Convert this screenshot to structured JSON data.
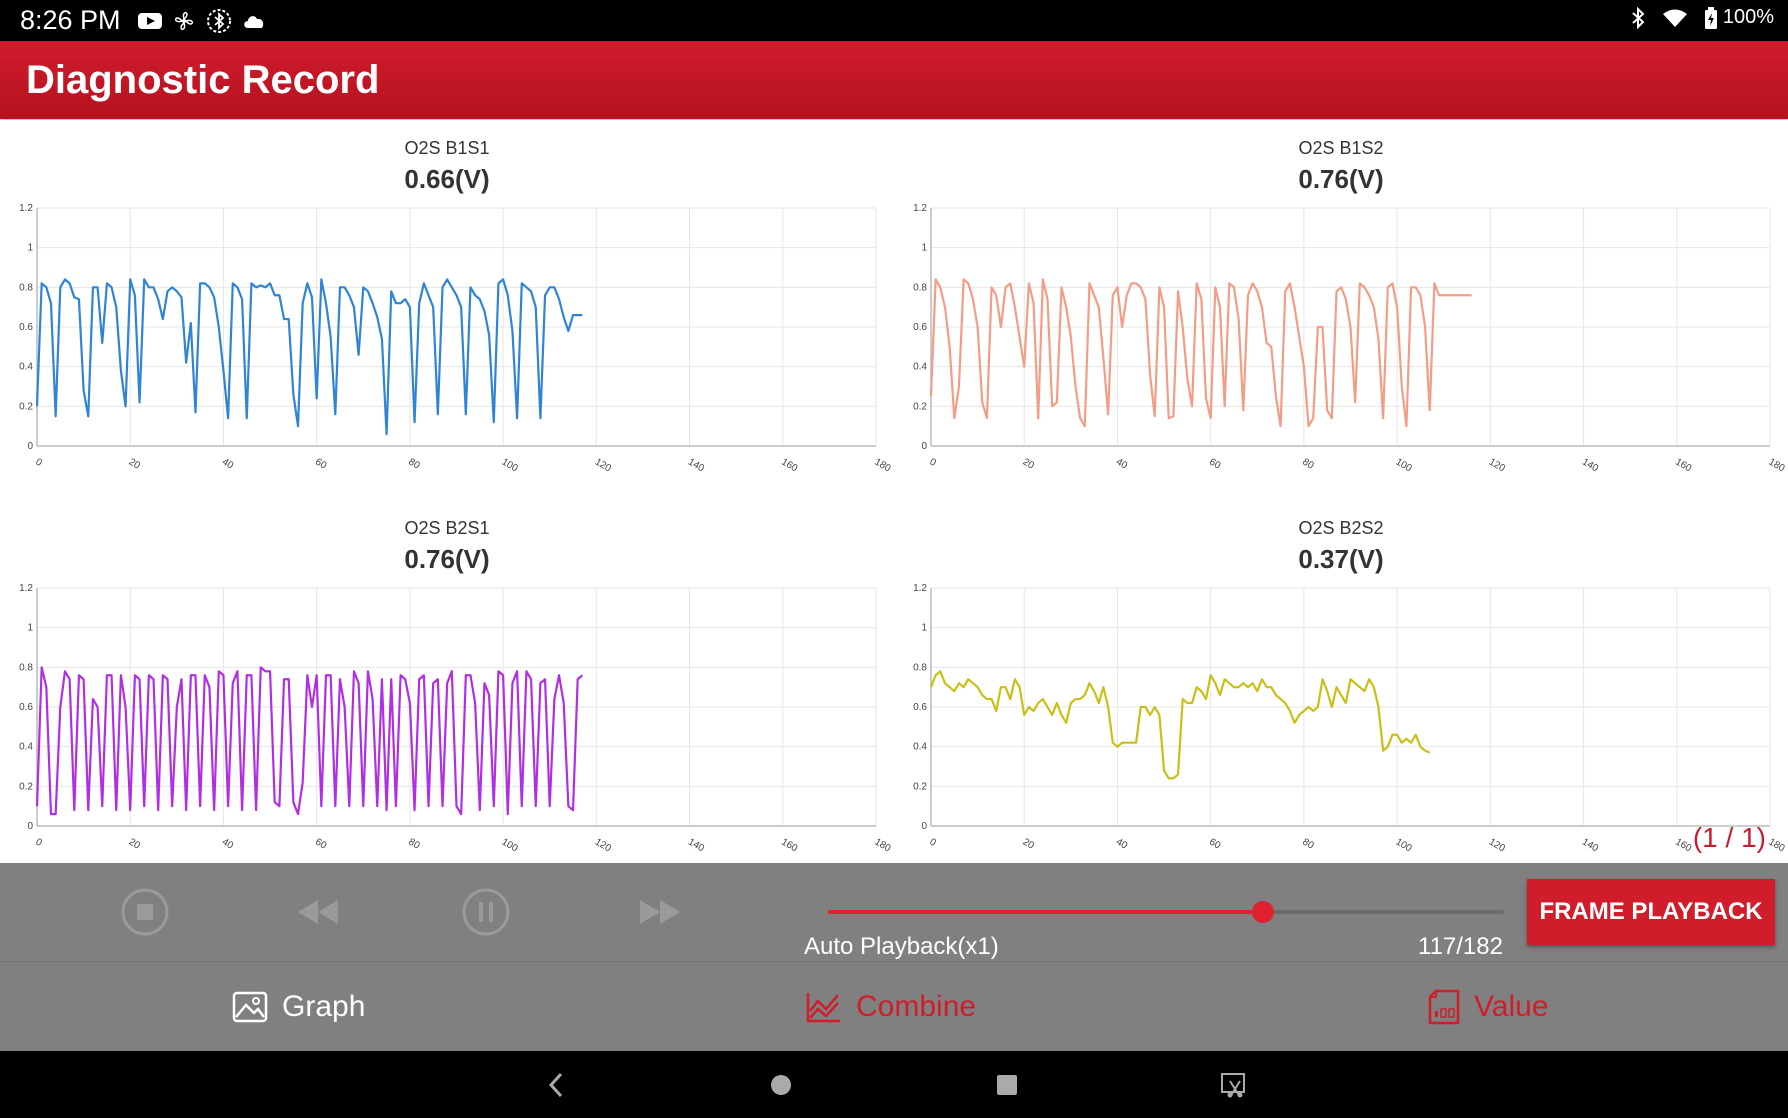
{
  "status_bar": {
    "time": "8:26 PM",
    "battery": "100%",
    "icons_left": [
      "youtube-icon",
      "fan-icon",
      "bluetooth-badge-icon",
      "cloud-icon"
    ],
    "icons_right": [
      "bluetooth-icon",
      "wifi-icon",
      "battery-icon"
    ]
  },
  "header": {
    "title": "Diagnostic Record",
    "color": "#c8192a"
  },
  "charts": [
    {
      "label": "O2S B1S1",
      "value": "0.66(V)",
      "color": "#2f84d4"
    },
    {
      "label": "O2S B1S2",
      "value": "0.76(V)",
      "color": "#f39c86"
    },
    {
      "label": "O2S B2S1",
      "value": "0.76(V)",
      "color": "#b12fe3"
    },
    {
      "label": "O2S B2S2",
      "value": "0.37(V)",
      "color": "#c8c017"
    }
  ],
  "chart_data": [
    {
      "type": "line",
      "title": "O2S B1S1",
      "xlim": [
        0,
        180
      ],
      "ylim": [
        0,
        1.2
      ],
      "x_ticks": [
        "0",
        "20",
        "40",
        "60",
        "80",
        "100",
        "120",
        "140",
        "160",
        "180"
      ],
      "y_ticks": [
        "0",
        "0.2",
        "0.4",
        "0.6",
        "0.8",
        "1",
        "1.2"
      ],
      "grid": true,
      "series": [
        {
          "color": "#2f84d4",
          "values": [
            0.2,
            0.82,
            0.8,
            0.72,
            0.15,
            0.8,
            0.84,
            0.82,
            0.75,
            0.74,
            0.28,
            0.15,
            0.8,
            0.8,
            0.52,
            0.82,
            0.8,
            0.7,
            0.38,
            0.2,
            0.84,
            0.76,
            0.22,
            0.84,
            0.8,
            0.8,
            0.74,
            0.64,
            0.78,
            0.8,
            0.78,
            0.75,
            0.42,
            0.62,
            0.17,
            0.82,
            0.82,
            0.8,
            0.75,
            0.6,
            0.38,
            0.14,
            0.82,
            0.8,
            0.74,
            0.14,
            0.82,
            0.8,
            0.81,
            0.8,
            0.82,
            0.76,
            0.76,
            0.64,
            0.64,
            0.26,
            0.1,
            0.72,
            0.82,
            0.75,
            0.24,
            0.84,
            0.72,
            0.55,
            0.16,
            0.8,
            0.8,
            0.76,
            0.7,
            0.46,
            0.8,
            0.78,
            0.72,
            0.65,
            0.54,
            0.06,
            0.78,
            0.72,
            0.72,
            0.74,
            0.7,
            0.12,
            0.72,
            0.82,
            0.76,
            0.7,
            0.16,
            0.8,
            0.84,
            0.8,
            0.76,
            0.7,
            0.16,
            0.8,
            0.76,
            0.74,
            0.68,
            0.56,
            0.12,
            0.82,
            0.84,
            0.76,
            0.58,
            0.14,
            0.82,
            0.8,
            0.78,
            0.7,
            0.14,
            0.76,
            0.8,
            0.8,
            0.74,
            0.65,
            0.58,
            0.66,
            0.66,
            0.66
          ]
        }
      ]
    },
    {
      "type": "line",
      "title": "O2S B1S2",
      "xlim": [
        0,
        180
      ],
      "ylim": [
        0,
        1.2
      ],
      "x_ticks": [
        "0",
        "20",
        "40",
        "60",
        "80",
        "100",
        "120",
        "140",
        "160",
        "180"
      ],
      "y_ticks": [
        "0",
        "0.2",
        "0.4",
        "0.6",
        "0.8",
        "1",
        "1.2"
      ],
      "grid": true,
      "series": [
        {
          "color": "#f39c86",
          "values": [
            0.25,
            0.84,
            0.8,
            0.7,
            0.5,
            0.14,
            0.3,
            0.84,
            0.82,
            0.74,
            0.6,
            0.22,
            0.14,
            0.8,
            0.76,
            0.6,
            0.8,
            0.82,
            0.7,
            0.55,
            0.4,
            0.82,
            0.72,
            0.14,
            0.84,
            0.74,
            0.2,
            0.22,
            0.8,
            0.7,
            0.55,
            0.3,
            0.14,
            0.1,
            0.82,
            0.76,
            0.7,
            0.44,
            0.16,
            0.76,
            0.8,
            0.6,
            0.76,
            0.82,
            0.82,
            0.8,
            0.74,
            0.36,
            0.15,
            0.8,
            0.7,
            0.14,
            0.15,
            0.78,
            0.6,
            0.34,
            0.2,
            0.82,
            0.74,
            0.24,
            0.14,
            0.8,
            0.7,
            0.2,
            0.82,
            0.8,
            0.64,
            0.18,
            0.76,
            0.82,
            0.78,
            0.7,
            0.52,
            0.5,
            0.25,
            0.1,
            0.78,
            0.82,
            0.7,
            0.55,
            0.4,
            0.1,
            0.14,
            0.6,
            0.6,
            0.18,
            0.14,
            0.78,
            0.8,
            0.74,
            0.6,
            0.22,
            0.82,
            0.8,
            0.76,
            0.7,
            0.54,
            0.14,
            0.8,
            0.82,
            0.7,
            0.3,
            0.1,
            0.8,
            0.8,
            0.76,
            0.6,
            0.18,
            0.82,
            0.76,
            0.76,
            0.76,
            0.76,
            0.76,
            0.76,
            0.76,
            0.76
          ]
        }
      ]
    },
    {
      "type": "line",
      "title": "O2S B2S1",
      "xlim": [
        0,
        180
      ],
      "ylim": [
        0,
        1.2
      ],
      "x_ticks": [
        "0",
        "20",
        "40",
        "60",
        "80",
        "100",
        "120",
        "140",
        "160",
        "180"
      ],
      "y_ticks": [
        "0",
        "0.2",
        "0.4",
        "0.6",
        "0.8",
        "1",
        "1.2"
      ],
      "grid": true,
      "series": [
        {
          "color": "#b12fe3",
          "values": [
            0.1,
            0.8,
            0.7,
            0.06,
            0.06,
            0.6,
            0.78,
            0.74,
            0.08,
            0.76,
            0.74,
            0.08,
            0.64,
            0.6,
            0.1,
            0.76,
            0.76,
            0.08,
            0.76,
            0.6,
            0.08,
            0.76,
            0.74,
            0.1,
            0.76,
            0.74,
            0.08,
            0.76,
            0.74,
            0.1,
            0.6,
            0.74,
            0.08,
            0.76,
            0.76,
            0.1,
            0.76,
            0.7,
            0.08,
            0.78,
            0.76,
            0.1,
            0.72,
            0.78,
            0.08,
            0.76,
            0.76,
            0.08,
            0.8,
            0.78,
            0.78,
            0.12,
            0.1,
            0.74,
            0.74,
            0.12,
            0.06,
            0.22,
            0.76,
            0.6,
            0.76,
            0.1,
            0.76,
            0.76,
            0.1,
            0.74,
            0.6,
            0.1,
            0.78,
            0.72,
            0.1,
            0.78,
            0.64,
            0.1,
            0.74,
            0.08,
            0.74,
            0.1,
            0.76,
            0.74,
            0.62,
            0.08,
            0.74,
            0.76,
            0.1,
            0.72,
            0.74,
            0.1,
            0.72,
            0.78,
            0.1,
            0.06,
            0.76,
            0.76,
            0.62,
            0.08,
            0.72,
            0.66,
            0.1,
            0.78,
            0.76,
            0.06,
            0.72,
            0.78,
            0.1,
            0.78,
            0.74,
            0.1,
            0.72,
            0.74,
            0.1,
            0.64,
            0.76,
            0.62,
            0.1,
            0.08,
            0.74,
            0.76
          ]
        }
      ]
    },
    {
      "type": "line",
      "title": "O2S B2S2",
      "xlim": [
        0,
        180
      ],
      "ylim": [
        0,
        1.2
      ],
      "x_ticks": [
        "0",
        "20",
        "40",
        "60",
        "80",
        "100",
        "120",
        "140",
        "160",
        "180"
      ],
      "y_ticks": [
        "0",
        "0.2",
        "0.4",
        "0.6",
        "0.8",
        "1",
        "1.2"
      ],
      "grid": true,
      "series": [
        {
          "color": "#c8c017",
          "values": [
            0.7,
            0.76,
            0.78,
            0.72,
            0.7,
            0.68,
            0.72,
            0.7,
            0.74,
            0.72,
            0.7,
            0.66,
            0.64,
            0.64,
            0.58,
            0.7,
            0.7,
            0.64,
            0.74,
            0.7,
            0.56,
            0.6,
            0.58,
            0.62,
            0.64,
            0.6,
            0.56,
            0.62,
            0.56,
            0.52,
            0.62,
            0.64,
            0.64,
            0.66,
            0.72,
            0.68,
            0.62,
            0.7,
            0.6,
            0.42,
            0.4,
            0.42,
            0.42,
            0.42,
            0.42,
            0.6,
            0.6,
            0.56,
            0.6,
            0.56,
            0.28,
            0.24,
            0.24,
            0.26,
            0.64,
            0.62,
            0.62,
            0.7,
            0.68,
            0.64,
            0.76,
            0.72,
            0.66,
            0.74,
            0.72,
            0.7,
            0.7,
            0.72,
            0.7,
            0.72,
            0.68,
            0.74,
            0.7,
            0.7,
            0.66,
            0.64,
            0.62,
            0.58,
            0.52,
            0.56,
            0.58,
            0.6,
            0.58,
            0.6,
            0.74,
            0.68,
            0.6,
            0.7,
            0.66,
            0.62,
            0.74,
            0.72,
            0.7,
            0.68,
            0.74,
            0.7,
            0.6,
            0.38,
            0.4,
            0.46,
            0.46,
            0.42,
            0.44,
            0.42,
            0.46,
            0.4,
            0.38,
            0.37
          ]
        }
      ]
    }
  ],
  "page_indicator": "(1 / 1)",
  "controls": {
    "progress_value": 117,
    "progress_max": 182,
    "playback_label": "Auto Playback(x1)",
    "frame_count": "117/182",
    "frame_button": "FRAME PLAYBACK",
    "accent": "#d01d2b"
  },
  "tabs": {
    "graph": "Graph",
    "combine": "Combine",
    "value": "Value"
  }
}
